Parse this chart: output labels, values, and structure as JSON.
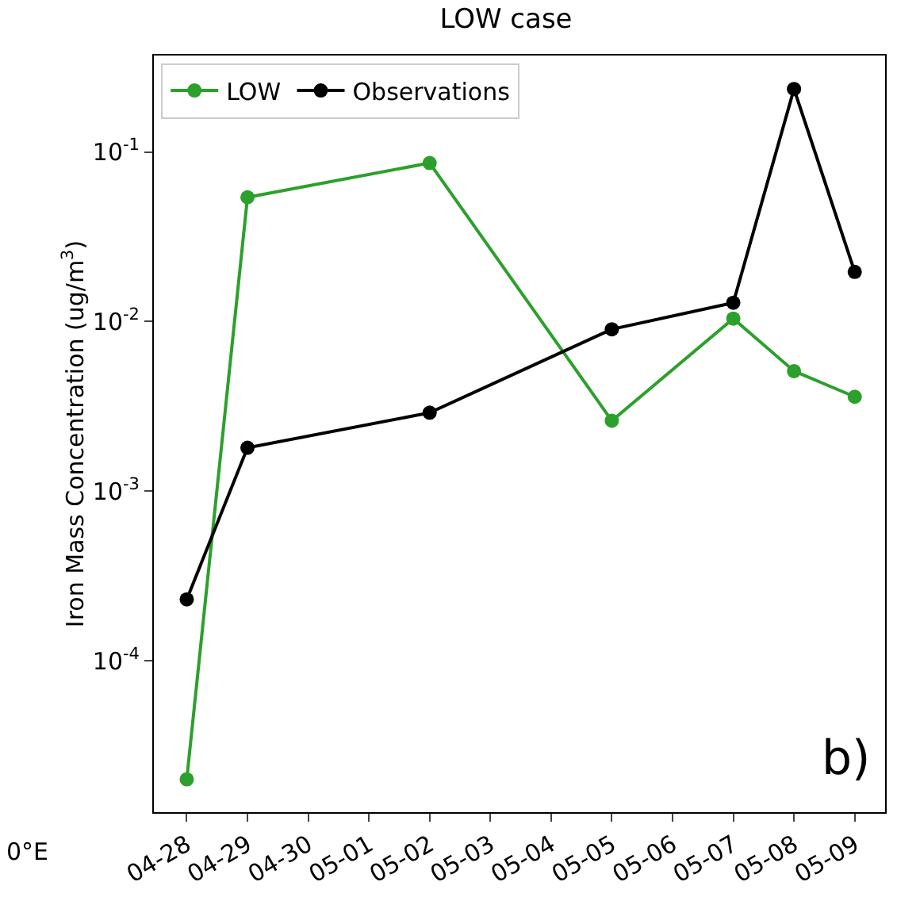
{
  "chart_data": {
    "type": "line",
    "title": "LOW case",
    "ylabel": "Iron Mass Concentration (ug/m$^{3}$)",
    "x": [
      "--04-28",
      "--04-29",
      "--05-02",
      "--05-05",
      "--05-07",
      "--05-08",
      "--05-09"
    ],
    "series": [
      {
        "name": "LOW",
        "color": "#2ca02c",
        "values": [
          2e-05,
          0.054,
          0.086,
          0.0026,
          0.0104,
          0.0051,
          0.0036
        ]
      },
      {
        "name": "Observations",
        "color": "#000000",
        "values": [
          0.00023,
          0.0018,
          0.0029,
          0.009,
          0.0129,
          0.235,
          0.0196
        ]
      }
    ],
    "log": "y",
    "ylim": [
      1.28e-05,
      0.37
    ],
    "yticks": [
      {
        "value": 0.0001,
        "label": "10$^{-4}$"
      },
      {
        "value": 0.001,
        "label": "10$^{-3}$"
      },
      {
        "value": 0.01,
        "label": "10$^{-2}$"
      },
      {
        "value": 0.1,
        "label": "10$^{-1}$"
      }
    ],
    "xlim": [
      "--04-27T11:00",
      "--05-09T12:00"
    ],
    "xticks": [
      {
        "value": "--04-28",
        "label": "04-28"
      },
      {
        "value": "--04-29",
        "label": "04-29"
      },
      {
        "value": "--04-30",
        "label": "04-30"
      },
      {
        "value": "--05-01",
        "label": "05-01"
      },
      {
        "value": "--05-02",
        "label": "05-02"
      },
      {
        "value": "--05-03",
        "label": "05-03"
      },
      {
        "value": "--05-04",
        "label": "05-04"
      },
      {
        "value": "--05-05",
        "label": "05-05"
      },
      {
        "value": "--05-06",
        "label": "05-06"
      },
      {
        "value": "--05-07",
        "label": "05-07"
      },
      {
        "value": "--05-08",
        "label": "05-08"
      },
      {
        "value": "--05-09",
        "label": "05-09"
      }
    ],
    "marker": "circle",
    "line_style": "solid",
    "grid": false,
    "legend": "top left",
    "annotations": [
      "b)",
      "0°E"
    ]
  }
}
